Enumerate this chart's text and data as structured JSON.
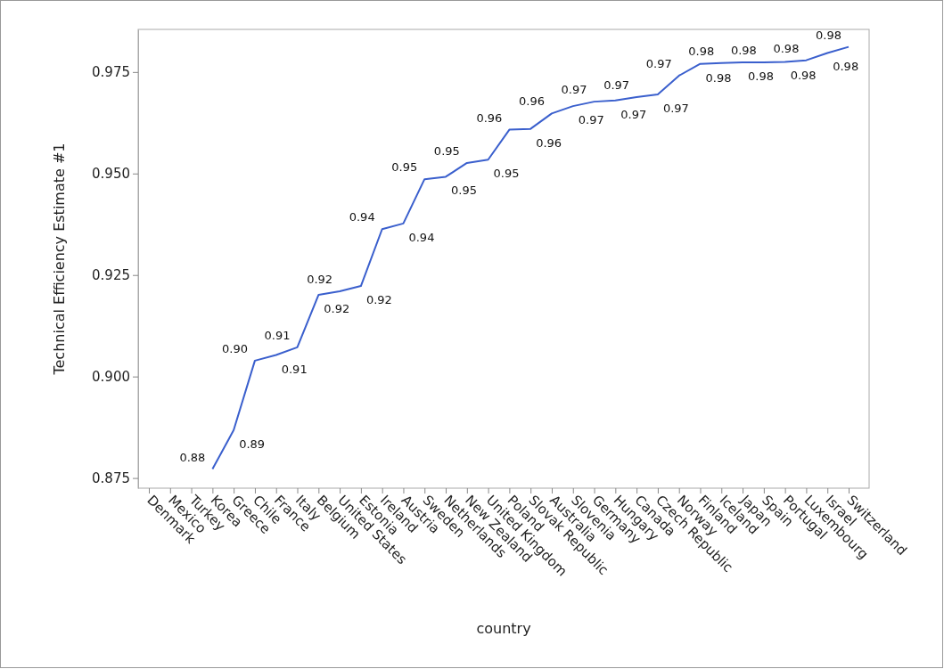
{
  "chart_data": {
    "type": "line",
    "xlabel": "country",
    "ylabel": "Technical Efficiency Estimate #1",
    "categories": [
      "Denmark",
      "Mexico",
      "Turkey",
      "Korea",
      "Greece",
      "Chile",
      "France",
      "Italy",
      "Belgium",
      "United States",
      "Estonia",
      "Ireland",
      "Austria",
      "Sweden",
      "Netherlands",
      "New Zealand",
      "United Kingdom",
      "Poland",
      "Slovak Republic",
      "Australia",
      "Slovenia",
      "Germany",
      "Hungary",
      "Canada",
      "Czech Republic",
      "Norway",
      "Finland",
      "Iceland",
      "Japan",
      "Spain",
      "Portugal",
      "Luxembourg",
      "Israel",
      "Switzerland"
    ],
    "series": [
      {
        "color": "#3a5fcd",
        "values": [
          null,
          null,
          null,
          0.8772,
          0.8868,
          0.9039,
          0.9053,
          0.9072,
          0.9201,
          0.921,
          0.9223,
          0.9363,
          0.9377,
          0.9486,
          0.9492,
          0.9526,
          0.9534,
          0.9608,
          0.961,
          0.9648,
          0.9666,
          0.9677,
          0.968,
          0.9688,
          0.9695,
          0.9741,
          0.977,
          0.9772,
          0.9774,
          0.9774,
          0.9775,
          0.9779,
          0.9797,
          0.9812
        ],
        "value_labels": [
          null,
          null,
          null,
          "0.88",
          "0.89",
          "0.90",
          "0.91",
          "0.91",
          "0.92",
          "0.92",
          "0.92",
          "0.94",
          "0.94",
          "0.95",
          "0.95",
          "0.95",
          "0.95",
          "0.96",
          "0.96",
          "0.96",
          "0.97",
          "0.97",
          "0.97",
          "0.97",
          "0.97",
          "0.97",
          "0.98",
          "0.98",
          "0.98",
          "0.98",
          "0.98",
          "0.98",
          "0.98",
          "0.98"
        ]
      }
    ],
    "ylim": [
      0.8725,
      0.9855
    ],
    "yticks": [
      {
        "value": 0.875,
        "label": "0.875"
      },
      {
        "value": 0.9,
        "label": "0.900"
      },
      {
        "value": 0.925,
        "label": "0.925"
      },
      {
        "value": 0.95,
        "label": "0.950"
      },
      {
        "value": 0.975,
        "label": "0.975"
      }
    ],
    "grid": false,
    "marker": "none",
    "line_style": "solid"
  }
}
